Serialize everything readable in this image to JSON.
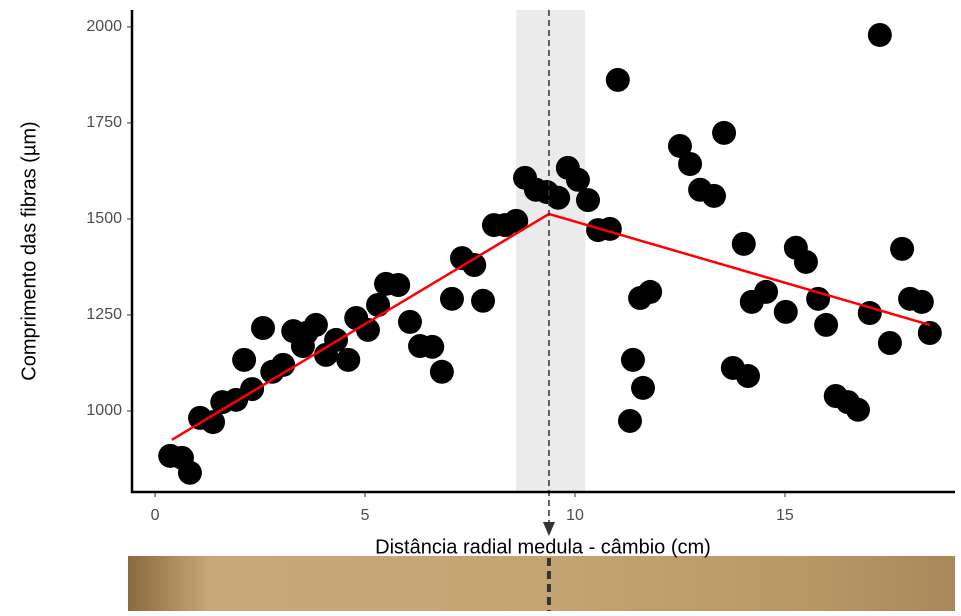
{
  "chart_data": {
    "type": "scatter",
    "xlabel": "Distância radial medula - câmbio (cm)",
    "ylabel": "Comprimento das fibras (µm)",
    "xlim": [
      -0.55,
      19.05
    ],
    "ylim": [
      789,
      2044
    ],
    "xticks": [
      0,
      5,
      10,
      15
    ],
    "yticks": [
      1000,
      1250,
      1500,
      1750,
      2000
    ],
    "grid": false,
    "color": "#000000",
    "x": [
      0.36,
      0.64,
      0.83,
      1.07,
      1.38,
      1.6,
      1.93,
      2.31,
      2.12,
      2.57,
      2.79,
      3.05,
      3.29,
      3.52,
      3.6,
      3.83,
      4.07,
      4.31,
      4.6,
      4.79,
      5.07,
      5.31,
      5.5,
      5.79,
      6.07,
      6.31,
      6.6,
      6.83,
      7.07,
      7.31,
      7.6,
      7.81,
      8.07,
      8.33,
      8.6,
      8.81,
      9.07,
      9.33,
      9.6,
      9.83,
      10.07,
      10.31,
      10.55,
      10.83,
      11.02,
      11.31,
      11.55,
      11.79,
      11.38,
      11.62,
      12.5,
      12.74,
      12.98,
      13.31,
      13.55,
      13.76,
      14.02,
      14.21,
      14.55,
      15.02,
      14.12,
      15.26,
      15.5,
      15.79,
      15.98,
      16.21,
      16.5,
      16.74,
      17.02,
      17.26,
      17.5,
      17.79,
      17.98,
      18.26,
      18.45
    ],
    "y": [
      883,
      878,
      839,
      982,
      971,
      1023,
      1029,
      1057,
      1133,
      1216,
      1102,
      1120,
      1208,
      1169,
      1203,
      1224,
      1146,
      1185,
      1133,
      1242,
      1211,
      1276,
      1331,
      1328,
      1232,
      1169,
      1167,
      1102,
      1292,
      1398,
      1380,
      1287,
      1484,
      1484,
      1495,
      1607,
      1576,
      1570,
      1555,
      1633,
      1602,
      1549,
      1471,
      1474,
      1862,
      974,
      1294,
      1310,
      1133,
      1060,
      1690,
      1643,
      1576,
      1560,
      1724,
      1112,
      1435,
      1284,
      1310,
      1258,
      1091,
      1425,
      1388,
      1292,
      1224,
      1039,
      1023,
      1003,
      1255,
      1979,
      1177,
      1422,
      1292,
      1284,
      1203
    ],
    "fit": {
      "x": [
        0.4,
        9.38,
        18.45
      ],
      "y": [
        925,
        1513,
        1224
      ],
      "color": "#ff0000"
    },
    "breakpoint": 9.38,
    "breakpoint_interval": [
      8.6,
      10.24
    ]
  }
}
